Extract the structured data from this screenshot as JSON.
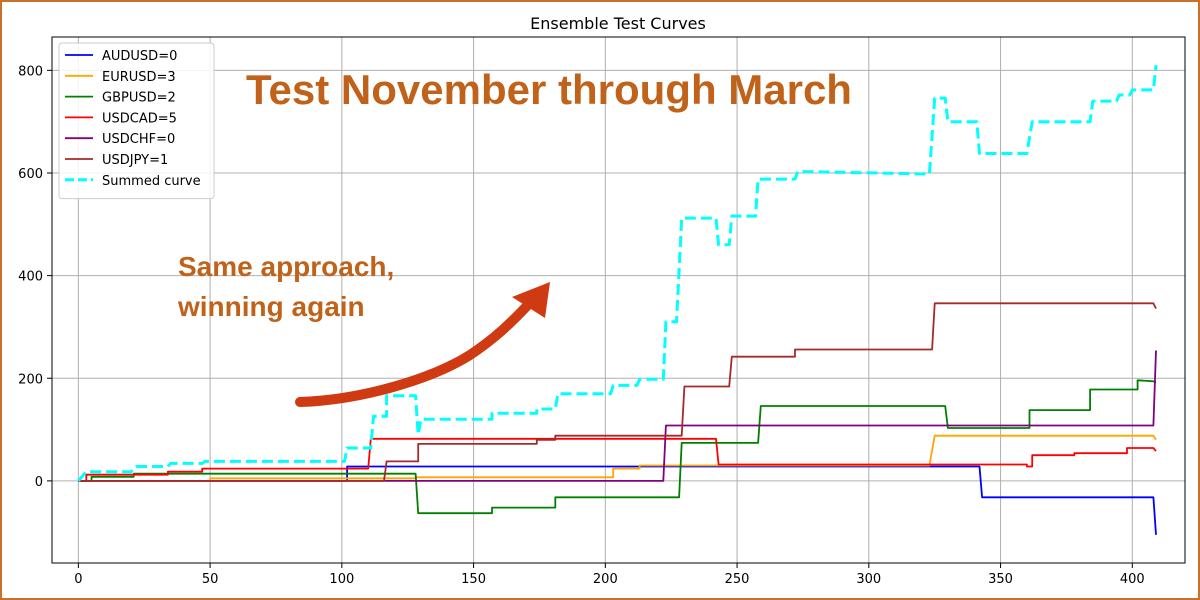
{
  "chart_data": {
    "type": "line",
    "title": "Ensemble Test Curves",
    "xlabel": "",
    "ylabel": "",
    "xlim": [
      -10,
      420
    ],
    "ylim": [
      -160,
      865
    ],
    "xticks": [
      0,
      50,
      100,
      150,
      200,
      250,
      300,
      350,
      400
    ],
    "yticks": [
      0,
      200,
      400,
      600,
      800
    ],
    "grid": true,
    "legend_position": "top-left",
    "series": [
      {
        "name": "AUDUSD=0",
        "color": "#0000ff",
        "style": "solid",
        "points": [
          [
            0,
            0
          ],
          [
            20,
            0
          ],
          [
            102,
            0
          ],
          [
            102,
            28
          ],
          [
            342,
            28
          ],
          [
            343,
            -32
          ],
          [
            408,
            -32
          ],
          [
            409,
            -105
          ]
        ]
      },
      {
        "name": "EURUSD=3",
        "color": "#ffa500",
        "style": "solid",
        "points": [
          [
            0,
            0
          ],
          [
            50,
            0
          ],
          [
            50,
            5
          ],
          [
            128,
            5
          ],
          [
            128,
            7
          ],
          [
            203,
            7
          ],
          [
            203,
            24
          ],
          [
            213,
            24
          ],
          [
            213,
            30
          ],
          [
            323,
            30
          ],
          [
            325,
            88
          ],
          [
            408,
            88
          ],
          [
            409,
            80
          ]
        ]
      },
      {
        "name": "GBPUSD=2",
        "color": "#008000",
        "style": "solid",
        "points": [
          [
            0,
            0
          ],
          [
            5,
            0
          ],
          [
            5,
            8
          ],
          [
            21,
            8
          ],
          [
            21,
            14
          ],
          [
            128,
            14
          ],
          [
            129,
            -63
          ],
          [
            157,
            -63
          ],
          [
            157,
            -52
          ],
          [
            181,
            -52
          ],
          [
            181,
            -32
          ],
          [
            228,
            -32
          ],
          [
            229,
            74
          ],
          [
            258,
            74
          ],
          [
            259,
            146
          ],
          [
            329,
            146
          ],
          [
            330,
            103
          ],
          [
            361,
            103
          ],
          [
            361,
            138
          ],
          [
            384,
            138
          ],
          [
            384,
            178
          ],
          [
            402,
            178
          ],
          [
            402,
            196
          ],
          [
            408,
            194
          ],
          [
            409,
            192
          ]
        ]
      },
      {
        "name": "USDCAD=5",
        "color": "#ff0000",
        "style": "solid",
        "points": [
          [
            0,
            0
          ],
          [
            3,
            0
          ],
          [
            3,
            12
          ],
          [
            34,
            12
          ],
          [
            34,
            18
          ],
          [
            47,
            18
          ],
          [
            47,
            24
          ],
          [
            110,
            24
          ],
          [
            111,
            82
          ],
          [
            242,
            82
          ],
          [
            243,
            32
          ],
          [
            360,
            32
          ],
          [
            360,
            28
          ],
          [
            362,
            28
          ],
          [
            362,
            50
          ],
          [
            378,
            50
          ],
          [
            378,
            54
          ],
          [
            398,
            54
          ],
          [
            398,
            64
          ],
          [
            408,
            64
          ],
          [
            409,
            58
          ]
        ]
      },
      {
        "name": "USDCHF=0",
        "color": "#800080",
        "style": "solid",
        "points": [
          [
            0,
            0
          ],
          [
            222,
            0
          ],
          [
            223,
            108
          ],
          [
            408,
            108
          ],
          [
            409,
            254
          ]
        ]
      },
      {
        "name": "USDJPY=1",
        "color": "#a52a2a",
        "style": "solid",
        "points": [
          [
            0,
            0
          ],
          [
            116,
            0
          ],
          [
            117,
            38
          ],
          [
            129,
            38
          ],
          [
            129,
            72
          ],
          [
            174,
            72
          ],
          [
            174,
            80
          ],
          [
            181,
            80
          ],
          [
            181,
            88
          ],
          [
            229,
            88
          ],
          [
            230,
            184
          ],
          [
            247,
            184
          ],
          [
            248,
            242
          ],
          [
            272,
            242
          ],
          [
            272,
            256
          ],
          [
            324,
            256
          ],
          [
            325,
            346
          ],
          [
            408,
            346
          ],
          [
            409,
            336
          ]
        ]
      },
      {
        "name": "Summed curve",
        "color": "#00ffff",
        "style": "dashed",
        "points": [
          [
            0,
            0
          ],
          [
            3,
            18
          ],
          [
            10,
            18
          ],
          [
            20,
            18
          ],
          [
            22,
            28
          ],
          [
            34,
            28
          ],
          [
            35,
            34
          ],
          [
            47,
            34
          ],
          [
            48,
            38
          ],
          [
            101,
            38
          ],
          [
            102,
            64
          ],
          [
            111,
            64
          ],
          [
            112,
            126
          ],
          [
            117,
            126
          ],
          [
            117,
            166
          ],
          [
            128,
            166
          ],
          [
            129,
            90
          ],
          [
            130,
            120
          ],
          [
            157,
            120
          ],
          [
            157,
            132
          ],
          [
            174,
            132
          ],
          [
            174,
            140
          ],
          [
            181,
            140
          ],
          [
            182,
            170
          ],
          [
            202,
            170
          ],
          [
            203,
            186
          ],
          [
            212,
            186
          ],
          [
            213,
            198
          ],
          [
            222,
            198
          ],
          [
            223,
            310
          ],
          [
            227,
            310
          ],
          [
            229,
            512
          ],
          [
            242,
            512
          ],
          [
            243,
            460
          ],
          [
            247,
            460
          ],
          [
            248,
            516
          ],
          [
            257,
            516
          ],
          [
            258,
            588
          ],
          [
            272,
            588
          ],
          [
            273,
            603
          ],
          [
            323,
            598
          ],
          [
            325,
            746
          ],
          [
            329,
            746
          ],
          [
            330,
            700
          ],
          [
            341,
            700
          ],
          [
            342,
            638
          ],
          [
            360,
            638
          ],
          [
            362,
            700
          ],
          [
            384,
            700
          ],
          [
            385,
            740
          ],
          [
            394,
            740
          ],
          [
            395,
            752
          ],
          [
            399,
            752
          ],
          [
            400,
            762
          ],
          [
            408,
            762
          ],
          [
            409,
            810
          ]
        ]
      }
    ]
  },
  "annotations": {
    "headline": "Test November through March",
    "note_line1": "Same approach,",
    "note_line2": "winning again"
  }
}
